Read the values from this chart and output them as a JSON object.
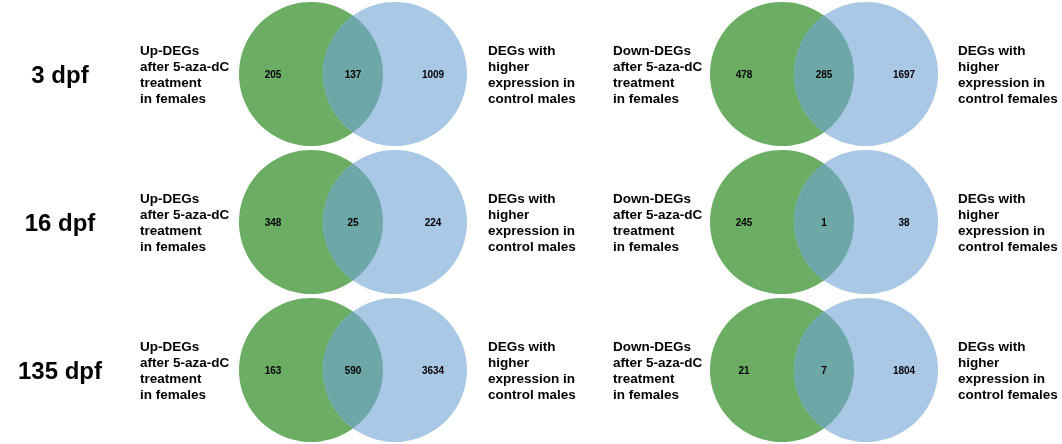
{
  "chart_data": [
    {
      "type": "other",
      "title": "3 dpf",
      "categories": [
        null,
        null,
        null
      ],
      "values": [
        205,
        137,
        1009
      ],
      "colors": [
        "#6aad63",
        "#6da7a8",
        "#a9c8e6"
      ],
      "data_labels": true,
      "annotations": [
        "Up-DEGs\nafter 5-aza-dC\ntreatment\nin females",
        "DEGs with\nhigher\nexpression in\ncontrol males"
      ]
    },
    {
      "type": "other",
      "categories": [
        null,
        null,
        null
      ],
      "values": [
        478,
        285,
        1697
      ],
      "colors": [
        "#6aad63",
        "#6da7a8",
        "#a9c8e6"
      ],
      "data_labels": true,
      "annotations": [
        "Down-DEGs\nafter 5-aza-dC\ntreatment\nin females",
        "DEGs with\nhigher\nexpression in\ncontrol females"
      ]
    },
    {
      "type": "other",
      "title": "16 dpf",
      "categories": [
        null,
        null,
        null
      ],
      "values": [
        348,
        25,
        224
      ],
      "colors": [
        "#6aad63",
        "#6da7a8",
        "#a9c8e6"
      ],
      "data_labels": true,
      "annotations": [
        "Up-DEGs\nafter 5-aza-dC\ntreatment\nin females",
        "DEGs with\nhigher\nexpression in\ncontrol males"
      ]
    },
    {
      "type": "other",
      "categories": [
        null,
        null,
        null
      ],
      "values": [
        245,
        1,
        38
      ],
      "colors": [
        "#6aad63",
        "#6da7a8",
        "#a9c8e6"
      ],
      "data_labels": true,
      "annotations": [
        "Down-DEGs\nafter 5-aza-dC\ntreatment\nin females",
        "DEGs with\nhigher\nexpression in\ncontrol females"
      ]
    },
    {
      "type": "other",
      "title": "135 dpf",
      "categories": [
        null,
        null,
        null
      ],
      "values": [
        163,
        590,
        3634
      ],
      "colors": [
        "#6aad63",
        "#6da7a8",
        "#a9c8e6"
      ],
      "data_labels": true,
      "annotations": [
        "Up-DEGs\nafter 5-aza-dC\ntreatment\nin females",
        "DEGs with\nhigher\nexpression in\ncontrol males"
      ]
    },
    {
      "type": "other",
      "categories": [
        null,
        null,
        null
      ],
      "values": [
        21,
        7,
        1804
      ],
      "colors": [
        "#6aad63",
        "#6da7a8",
        "#a9c8e6"
      ],
      "data_labels": true,
      "annotations": [
        "Down-DEGs\nafter 5-aza-dC\ntreatment\nin females",
        "DEGs with\nhigher\nexpression in\ncontrol females"
      ]
    }
  ]
}
